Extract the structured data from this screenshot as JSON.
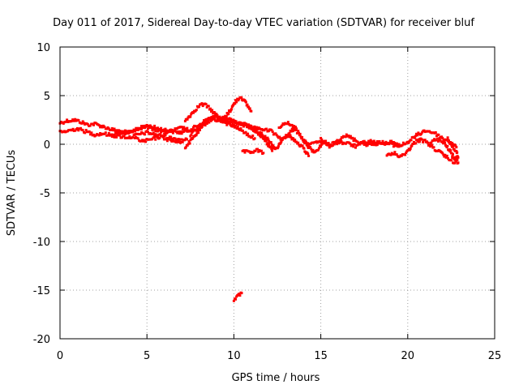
{
  "chart_data": {
    "type": "scatter",
    "title": "Day 011 of 2017, Sidereal Day-to-day VTEC variation (SDTVAR) for receiver bluf",
    "xlabel": "GPS time / hours",
    "ylabel": "SDTVAR / TECUs",
    "xlim": [
      0,
      25
    ],
    "ylim": [
      -20,
      10
    ],
    "xticks": [
      0,
      5,
      10,
      15,
      20,
      25
    ],
    "yticks": [
      10,
      5,
      0,
      -5,
      -10,
      -15,
      -20
    ],
    "grid": true,
    "series": [
      {
        "name": "SDTVAR",
        "color": "#ff0000",
        "tracks": [
          {
            "x": [
              0.0,
              0.4,
              0.8,
              1.2,
              1.6,
              2.0,
              2.5,
              3.0,
              3.5,
              4.0,
              4.5,
              5.0,
              5.5,
              6.0,
              6.5,
              7.0,
              7.5,
              8.0,
              8.5,
              9.0,
              9.5,
              10.0,
              10.5,
              11.0,
              11.5,
              12.0
            ],
            "y": [
              2.2,
              2.4,
              2.5,
              2.3,
              2.0,
              2.1,
              1.8,
              1.5,
              1.3,
              1.2,
              1.6,
              1.9,
              1.7,
              1.5,
              1.3,
              1.2,
              1.5,
              2.0,
              2.6,
              2.9,
              2.7,
              2.3,
              2.0,
              1.8,
              1.6,
              1.4
            ]
          },
          {
            "x": [
              0.0,
              0.5,
              1.0,
              1.5,
              2.0,
              2.5,
              3.0,
              3.5,
              4.0,
              4.5,
              5.0,
              5.5,
              6.0,
              6.5,
              7.0
            ],
            "y": [
              1.2,
              1.4,
              1.6,
              1.3,
              1.0,
              1.1,
              0.9,
              0.8,
              0.7,
              1.0,
              1.2,
              1.0,
              0.8,
              0.6,
              0.5
            ]
          },
          {
            "x": [
              3.0,
              3.5,
              4.0,
              4.5,
              5.0,
              5.5,
              6.0,
              6.5,
              7.0,
              7.5
            ],
            "y": [
              1.0,
              1.1,
              1.3,
              1.6,
              1.8,
              1.5,
              1.2,
              1.4,
              1.7,
              1.4
            ]
          },
          {
            "x": [
              4.3,
              4.8,
              5.3,
              5.8,
              6.3,
              6.8,
              7.3
            ],
            "y": [
              0.6,
              0.3,
              0.5,
              0.8,
              0.4,
              0.2,
              0.5
            ]
          },
          {
            "x": [
              7.2,
              7.5,
              7.8,
              8.1,
              8.4,
              8.7,
              9.0,
              9.3,
              9.6,
              10.0
            ],
            "y": [
              2.4,
              3.0,
              3.6,
              4.1,
              4.0,
              3.5,
              3.0,
              2.6,
              2.3,
              2.0
            ]
          },
          {
            "x": [
              7.2,
              7.6,
              8.0,
              8.4,
              8.8,
              9.2,
              9.6,
              10.0,
              10.4,
              10.8,
              11.2
            ],
            "y": [
              -0.3,
              0.5,
              1.4,
              2.2,
              2.6,
              2.4,
              2.1,
              1.9,
              1.5,
              1.0,
              0.6
            ]
          },
          {
            "x": [
              7.5,
              7.9,
              8.3,
              8.7,
              9.1,
              9.5,
              9.9,
              10.3,
              10.7,
              11.1,
              11.5,
              11.9,
              12.3
            ],
            "y": [
              1.0,
              1.6,
              2.2,
              2.6,
              2.8,
              2.6,
              2.4,
              2.2,
              2.0,
              1.6,
              1.2,
              0.6,
              -0.3
            ]
          },
          {
            "x": [
              9.5,
              9.8,
              10.1,
              10.4,
              10.7,
              11.0
            ],
            "y": [
              2.8,
              3.5,
              4.4,
              4.9,
              4.2,
              3.4
            ]
          },
          {
            "x": [
              10.5,
              10.9,
              11.3,
              11.6,
              11.9,
              12.2,
              12.5,
              12.8,
              13.1,
              13.4,
              13.7,
              14.0,
              14.3,
              14.6,
              14.9,
              15.2
            ],
            "y": [
              2.2,
              1.8,
              1.3,
              0.8,
              0.1,
              -0.6,
              -0.4,
              0.5,
              1.0,
              1.5,
              1.2,
              0.4,
              -0.3,
              -0.8,
              -0.4,
              0.1
            ]
          },
          {
            "x": [
              10.5,
              10.9,
              11.3,
              11.7
            ],
            "y": [
              -0.7,
              -0.9,
              -0.6,
              -0.9
            ]
          },
          {
            "x": [
              12.0,
              12.4,
              12.8,
              13.2,
              13.6,
              14.0,
              14.3
            ],
            "y": [
              1.5,
              1.0,
              0.5,
              0.9,
              0.2,
              -0.4,
              -1.2
            ]
          },
          {
            "x": [
              12.6,
              13.0,
              13.3,
              13.6
            ],
            "y": [
              1.8,
              2.2,
              2.0,
              1.6
            ]
          },
          {
            "x": [
              14.0,
              14.5,
              15.0,
              15.5,
              16.0,
              16.3,
              16.6,
              17.0,
              17.5,
              18.0,
              18.5,
              19.0,
              19.5,
              20.0,
              20.5,
              21.0,
              21.5,
              22.0,
              22.5,
              22.8
            ],
            "y": [
              0.3,
              0.0,
              0.3,
              -0.2,
              0.4,
              0.9,
              0.8,
              0.4,
              0.0,
              0.0,
              0.2,
              0.0,
              -0.2,
              0.2,
              0.9,
              1.4,
              1.2,
              0.6,
              0.2,
              -0.3
            ]
          },
          {
            "x": [
              15.0,
              15.5,
              16.0,
              16.5,
              17.0,
              17.5,
              18.0,
              18.5,
              19.0,
              19.5
            ],
            "y": [
              0.5,
              -0.1,
              0.2,
              0.1,
              -0.2,
              0.2,
              0.3,
              0.0,
              0.3,
              0.0
            ]
          },
          {
            "x": [
              18.8,
              19.2,
              19.6,
              20.0,
              20.4,
              20.8
            ],
            "y": [
              -1.2,
              -0.9,
              -1.3,
              -0.7,
              0.2,
              0.5
            ]
          },
          {
            "x": [
              20.5,
              21.0,
              21.5,
              21.9,
              22.2,
              22.5,
              22.8
            ],
            "y": [
              0.6,
              0.3,
              -0.4,
              -0.9,
              -1.3,
              -1.6,
              -1.3
            ]
          },
          {
            "x": [
              21.3,
              21.7,
              22.1,
              22.4,
              22.7,
              22.9
            ],
            "y": [
              0.2,
              0.5,
              0.1,
              -0.6,
              -1.5,
              -1.9
            ]
          },
          {
            "x": [
              22.3,
              22.55,
              22.8,
              22.9,
              22.8,
              22.6
            ],
            "y": [
              0.6,
              -0.2,
              -0.8,
              -1.3,
              -1.7,
              -1.9
            ]
          },
          {
            "x": [
              10.0,
              10.2,
              10.45
            ],
            "y": [
              -16.0,
              -15.7,
              -15.3
            ]
          }
        ]
      }
    ]
  }
}
